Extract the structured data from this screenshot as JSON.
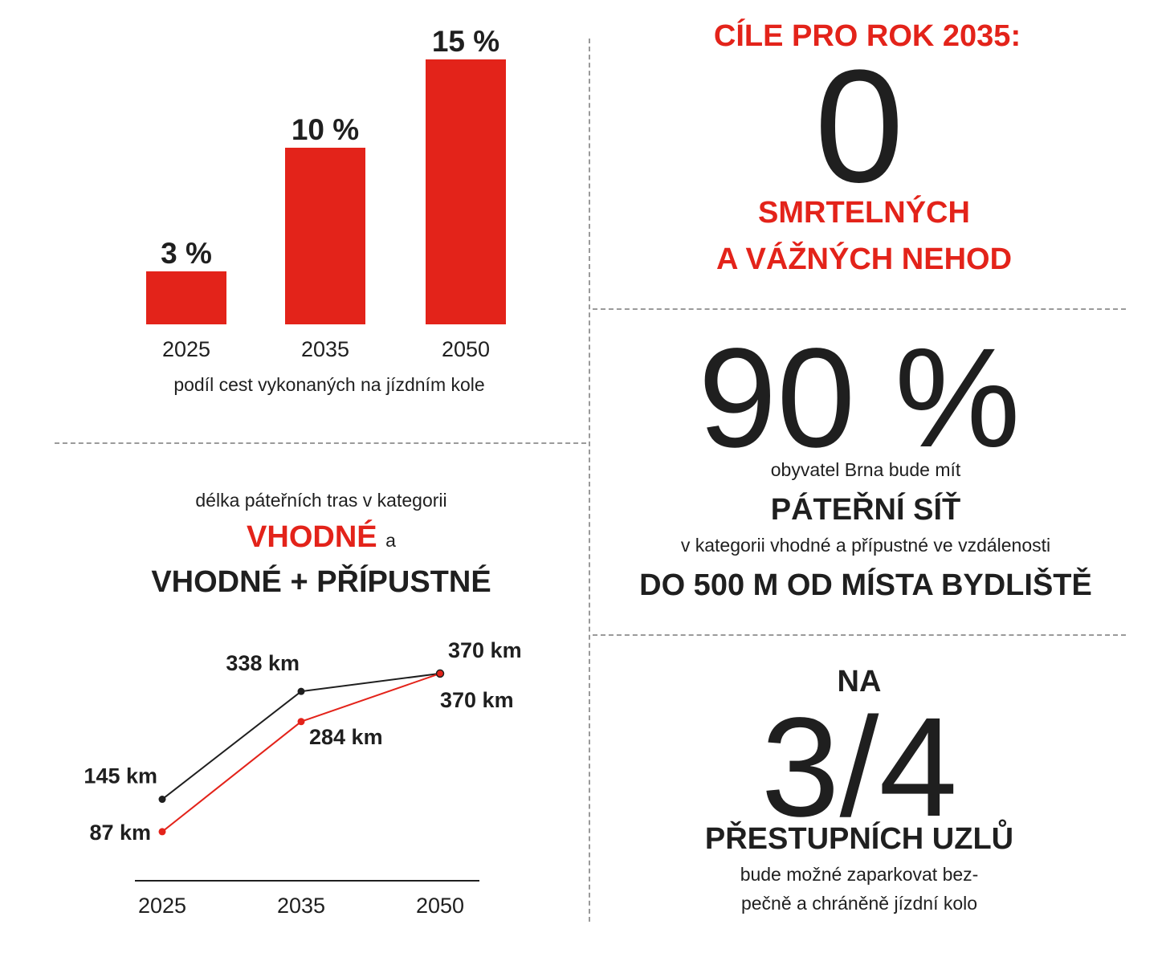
{
  "colors": {
    "accent": "#e3231a",
    "dark": "#1f1f1f",
    "divider": "#9a9a9a"
  },
  "chart_data": [
    {
      "type": "bar",
      "categories": [
        "2025",
        "2035",
        "2050"
      ],
      "values": [
        3,
        10,
        15
      ],
      "value_labels": [
        "3 %",
        "10 %",
        "15 %"
      ],
      "title": "",
      "caption": "podíl cest vykonaných na jízdním kole",
      "xlabel": "",
      "ylabel": "",
      "ylim": [
        0,
        15
      ],
      "grid": false,
      "bar_color": "#e3231a"
    },
    {
      "type": "line",
      "x": [
        "2025",
        "2035",
        "2050"
      ],
      "series": [
        {
          "values": [
            145,
            338,
            370
          ],
          "labels": [
            "145 km",
            "338 km",
            "370 km"
          ],
          "color": "#1f1f1f"
        },
        {
          "values": [
            87,
            284,
            370
          ],
          "labels": [
            "87 km",
            "284 km",
            "370 km"
          ],
          "color": "#e3231a"
        }
      ],
      "intro": "délka páteřních tras v kategorii",
      "title_part1": "VHODNÉ",
      "title_connector": "a",
      "title_part2": "VHODNÉ + PŘÍPUSTNÉ",
      "xlabel": "",
      "ylabel": "",
      "ylim": [
        0,
        400
      ],
      "grid": false
    }
  ],
  "goals": {
    "title": "CÍLE PRO ROK 2035:",
    "zero": "0",
    "line1": "SMRTELNÝCH",
    "line2": "A VÁŽNÝCH NEHOD"
  },
  "coverage": {
    "big": "90 %",
    "t1": "obyvatel Brna bude mít",
    "t2": "PÁTEŘNÍ SÍŤ",
    "t3": "v kategorii vhodné a přípustné ve vzdálenosti",
    "t4": "DO 500 M OD MÍSTA BYDLIŠTĚ"
  },
  "nodes": {
    "na": "NA",
    "big": "3/4",
    "t1": "PŘESTUPNÍCH UZLŮ",
    "t2": "bude možné zaparkovat bez-",
    "t3": "pečně a chráněně jízdní kolo"
  }
}
